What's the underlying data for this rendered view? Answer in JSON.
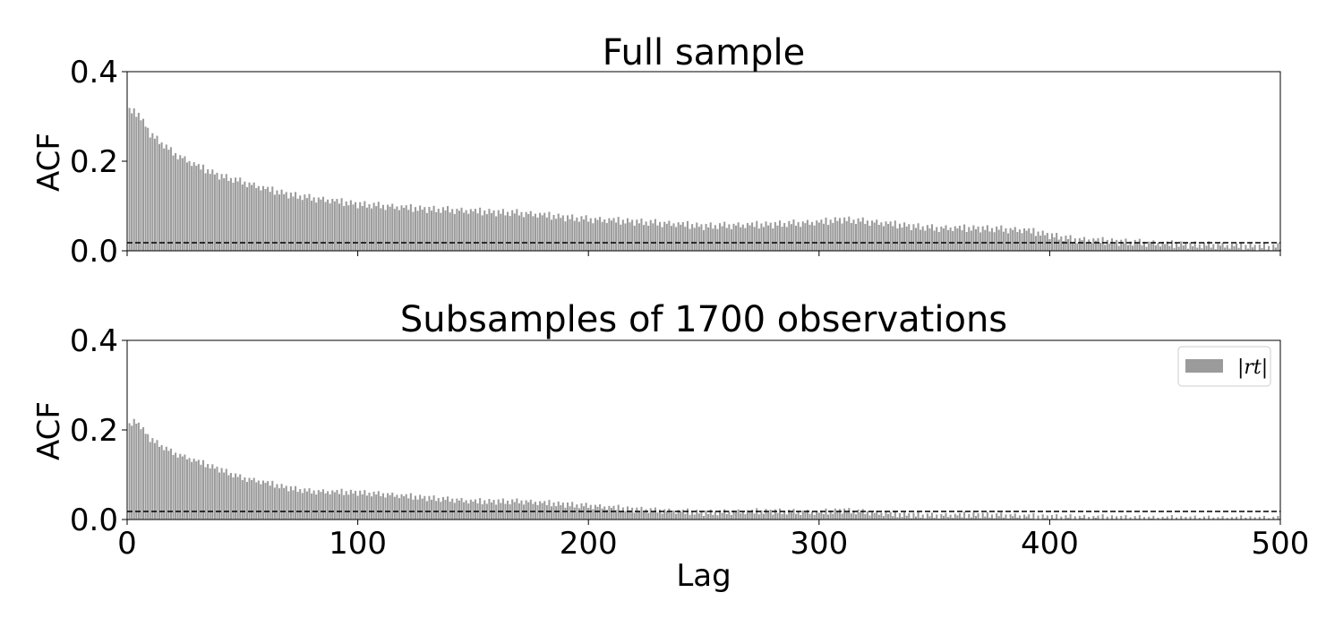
{
  "chart_data": [
    {
      "type": "bar",
      "title": "Full sample",
      "xlabel": "",
      "ylabel": "ACF",
      "xlim": [
        0,
        500
      ],
      "ylim": [
        0,
        0.4
      ],
      "x_ticks": [
        0,
        100,
        200,
        300,
        400,
        500
      ],
      "x_tick_labels_visible": false,
      "y_ticks": [
        "0.0",
        "0.2",
        "0.4"
      ],
      "reference_line": 0.018,
      "grid": false,
      "legend": null,
      "anchors": [
        [
          1,
          0.313
        ],
        [
          5,
          0.305
        ],
        [
          10,
          0.262
        ],
        [
          20,
          0.218
        ],
        [
          30,
          0.19
        ],
        [
          40,
          0.168
        ],
        [
          50,
          0.153
        ],
        [
          60,
          0.138
        ],
        [
          70,
          0.126
        ],
        [
          80,
          0.117
        ],
        [
          100,
          0.104
        ],
        [
          120,
          0.096
        ],
        [
          150,
          0.088
        ],
        [
          170,
          0.084
        ],
        [
          200,
          0.07
        ],
        [
          220,
          0.065
        ],
        [
          250,
          0.055
        ],
        [
          270,
          0.057
        ],
        [
          300,
          0.063
        ],
        [
          310,
          0.07
        ],
        [
          330,
          0.06
        ],
        [
          350,
          0.05
        ],
        [
          370,
          0.05
        ],
        [
          390,
          0.045
        ],
        [
          400,
          0.035
        ],
        [
          410,
          0.025
        ],
        [
          430,
          0.02
        ],
        [
          450,
          0.015
        ],
        [
          470,
          0.012
        ],
        [
          500,
          0.008
        ]
      ],
      "noise": [
        0.0,
        0.006,
        -0.004,
        0.009,
        -0.008,
        0.003,
        -0.005,
        0.007,
        -0.002,
        0.004,
        -0.009,
        0.005,
        -0.003,
        0.008,
        -0.006,
        0.002,
        -0.007,
        0.006,
        -0.001,
        0.009,
        -0.005,
        0.003,
        -0.008,
        0.004,
        0.0,
        0.007,
        -0.004,
        0.002,
        -0.006,
        0.005
      ]
    },
    {
      "type": "bar",
      "title": "Subsamples of 1700 observations",
      "xlabel": "Lag",
      "ylabel": "ACF",
      "xlim": [
        0,
        500
      ],
      "ylim": [
        0,
        0.4
      ],
      "x_ticks": [
        0,
        100,
        200,
        300,
        400,
        500
      ],
      "x_tick_labels_visible": true,
      "y_ticks": [
        "0.0",
        "0.2",
        "0.4"
      ],
      "reference_line": 0.018,
      "grid": false,
      "legend": {
        "position": "upper right",
        "series_name": "|rt|"
      },
      "anchors": [
        [
          1,
          0.21
        ],
        [
          4,
          0.22
        ],
        [
          10,
          0.18
        ],
        [
          20,
          0.148
        ],
        [
          30,
          0.13
        ],
        [
          40,
          0.112
        ],
        [
          50,
          0.092
        ],
        [
          60,
          0.082
        ],
        [
          70,
          0.07
        ],
        [
          80,
          0.062
        ],
        [
          100,
          0.06
        ],
        [
          120,
          0.052
        ],
        [
          150,
          0.04
        ],
        [
          170,
          0.04
        ],
        [
          200,
          0.03
        ],
        [
          220,
          0.022
        ],
        [
          250,
          0.015
        ],
        [
          280,
          0.018
        ],
        [
          300,
          0.015
        ],
        [
          310,
          0.02
        ],
        [
          330,
          0.012
        ],
        [
          350,
          0.008
        ],
        [
          370,
          0.01
        ],
        [
          400,
          0.005
        ],
        [
          450,
          0.002
        ],
        [
          500,
          0.001
        ]
      ],
      "noise": [
        0.0,
        0.005,
        -0.004,
        0.008,
        -0.006,
        0.003,
        -0.005,
        0.006,
        -0.002,
        0.004,
        -0.007,
        0.005,
        -0.003,
        0.007,
        -0.005,
        0.002,
        -0.006,
        0.005,
        -0.001,
        0.007,
        -0.004,
        0.003,
        -0.006,
        0.004,
        0.0,
        0.006,
        -0.003,
        0.002,
        -0.005,
        0.004
      ]
    }
  ]
}
